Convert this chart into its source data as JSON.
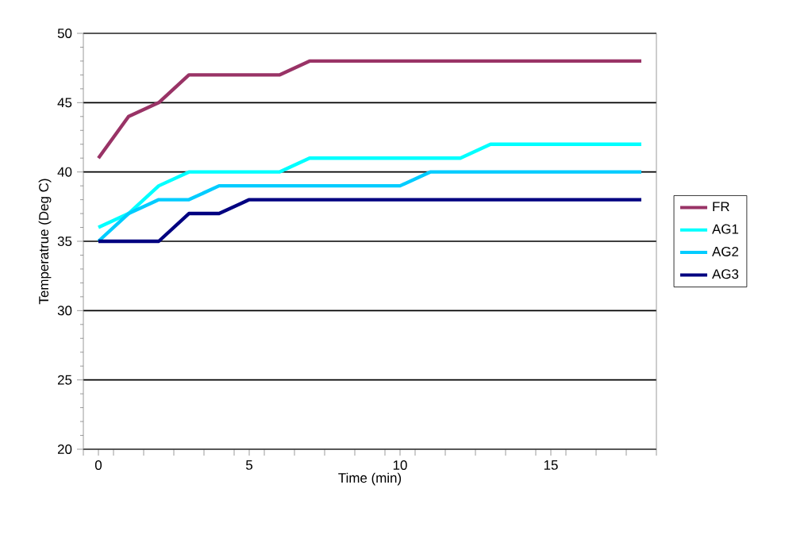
{
  "chart_data": {
    "type": "line",
    "xlabel": "Time (min)",
    "ylabel": "Temperatrue (Deg C)",
    "x": [
      0,
      1,
      2,
      3,
      4,
      5,
      6,
      7,
      8,
      9,
      10,
      11,
      12,
      13,
      14,
      15,
      16,
      17,
      18
    ],
    "xlim": [
      -0.5,
      18.5
    ],
    "xticks": [
      {
        "value": -0.5,
        "label": null
      },
      0,
      {
        "value": 0.5,
        "label": null
      },
      {
        "value": 1.5,
        "label": null
      },
      {
        "value": 2.5,
        "label": null
      },
      {
        "value": 3.5,
        "label": null
      },
      {
        "value": 4.5,
        "label": null
      },
      5,
      {
        "value": 5.5,
        "label": null
      },
      {
        "value": 6.5,
        "label": null
      },
      {
        "value": 7.5,
        "label": null
      },
      {
        "value": 8.5,
        "label": null
      },
      {
        "value": 9.5,
        "label": null
      },
      10,
      {
        "value": 10.5,
        "label": null
      },
      {
        "value": 11.5,
        "label": null
      },
      {
        "value": 12.5,
        "label": null
      },
      {
        "value": 13.5,
        "label": null
      },
      {
        "value": 14.5,
        "label": null
      },
      15,
      {
        "value": 15.5,
        "label": null
      },
      {
        "value": 16.5,
        "label": null
      },
      {
        "value": 17.5,
        "label": null
      },
      {
        "value": 18.5,
        "label": null
      }
    ],
    "ylim": [
      20,
      50
    ],
    "yticks": [
      20,
      25,
      30,
      35,
      40,
      45,
      50
    ],
    "grid": "y",
    "legend": "right",
    "marker": "none",
    "line_style": "solid",
    "series": [
      {
        "name": "FR",
        "color": "#993366",
        "values": [
          41,
          44,
          45,
          47,
          47,
          47,
          47,
          48,
          48,
          48,
          48,
          48,
          48,
          48,
          48,
          48,
          48,
          48,
          48
        ]
      },
      {
        "name": "AG1",
        "color": "#00ffff",
        "values": [
          36,
          37,
          39,
          40,
          40,
          40,
          40,
          41,
          41,
          41,
          41,
          41,
          41,
          42,
          42,
          42,
          42,
          42,
          42
        ]
      },
      {
        "name": "AG2",
        "color": "#00ccff",
        "values": [
          35,
          37,
          38,
          38,
          39,
          39,
          39,
          39,
          39,
          39,
          39,
          40,
          40,
          40,
          40,
          40,
          40,
          40,
          40
        ]
      },
      {
        "name": "AG3",
        "color": "#000080",
        "values": [
          35,
          35,
          35,
          37,
          37,
          38,
          38,
          38,
          38,
          38,
          38,
          38,
          38,
          38,
          38,
          38,
          38,
          38,
          38
        ]
      }
    ]
  }
}
